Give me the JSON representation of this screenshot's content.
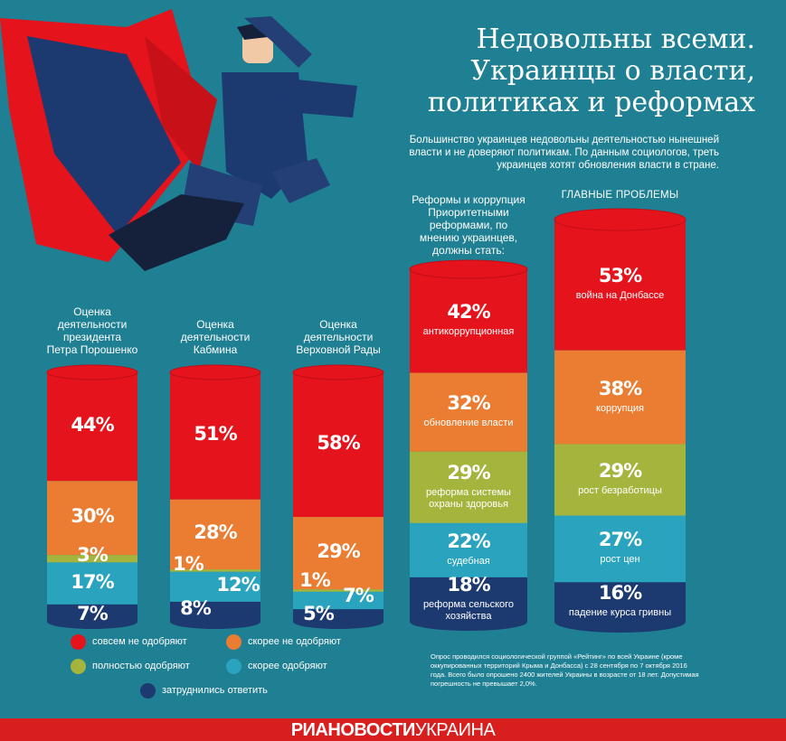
{
  "header": {
    "title_lines": [
      "Недовольны всеми.",
      "Украинцы о власти,",
      "политиках и реформах"
    ],
    "lead_lines": [
      "Большинство украинцев недовольны деятельностью нынешней",
      "власти и не доверяют политикам. По данным социологов, треть",
      "украинцев хотят обновления власти в стране."
    ]
  },
  "colors": {
    "background": "#1f7f93",
    "red": "#e4131c",
    "orange": "#ea7d32",
    "green": "#a4b43d",
    "teal": "#2aa4be",
    "navy": "#1c3970",
    "footer": "#d91e1e"
  },
  "chart_data": [
    {
      "type": "stacked-bar",
      "title_lines": [
        "Оценка",
        "деятельности",
        "президента",
        "Петра Порошенко"
      ],
      "segments": [
        {
          "key": "red",
          "value": 44,
          "label": "44%"
        },
        {
          "key": "orange",
          "value": 30,
          "label": "30%"
        },
        {
          "key": "green",
          "value": 3,
          "label": "3%"
        },
        {
          "key": "teal",
          "value": 17,
          "label": "17%"
        },
        {
          "key": "navy",
          "value": 7,
          "label": "7%"
        }
      ]
    },
    {
      "type": "stacked-bar",
      "title_lines": [
        "Оценка",
        "деятельности",
        "Кабмина"
      ],
      "segments": [
        {
          "key": "red",
          "value": 51,
          "label": "51%"
        },
        {
          "key": "orange",
          "value": 28,
          "label": "28%"
        },
        {
          "key": "green",
          "value": 1,
          "label": "1%"
        },
        {
          "key": "teal",
          "value": 12,
          "label": "12%"
        },
        {
          "key": "navy",
          "value": 8,
          "label": "8%"
        }
      ]
    },
    {
      "type": "stacked-bar",
      "title_lines": [
        "Оценка",
        "деятельности",
        "Верховной Рады"
      ],
      "segments": [
        {
          "key": "red",
          "value": 58,
          "label": "58%"
        },
        {
          "key": "orange",
          "value": 29,
          "label": "29%"
        },
        {
          "key": "green",
          "value": 1,
          "label": "1%"
        },
        {
          "key": "teal",
          "value": 7,
          "label": "7%"
        },
        {
          "key": "navy",
          "value": 5,
          "label": "5%"
        }
      ]
    },
    {
      "type": "stacked-bar",
      "title_lines": [
        "Реформы и коррупция",
        "Приоритетными",
        "реформами, по",
        "мнению украинцев,",
        "должны стать:"
      ],
      "segments": [
        {
          "key": "red",
          "value": 42,
          "label": "42%",
          "category": [
            "антикоррупционная"
          ]
        },
        {
          "key": "orange",
          "value": 32,
          "label": "32%",
          "category": [
            "обновление власти"
          ]
        },
        {
          "key": "green",
          "value": 29,
          "label": "29%",
          "category": [
            "реформа системы",
            "охраны здоровья"
          ]
        },
        {
          "key": "teal",
          "value": 22,
          "label": "22%",
          "category": [
            "судебная"
          ]
        },
        {
          "key": "navy",
          "value": 18,
          "label": "18%",
          "category": [
            "реформа сельского",
            "хозяйства"
          ]
        }
      ]
    },
    {
      "type": "stacked-bar",
      "title_lines": [
        "ГЛАВНЫЕ ПРОБЛЕМЫ"
      ],
      "segments": [
        {
          "key": "red",
          "value": 53,
          "label": "53%",
          "category": [
            "война на Донбассе"
          ]
        },
        {
          "key": "orange",
          "value": 38,
          "label": "38%",
          "category": [
            "коррупция"
          ]
        },
        {
          "key": "green",
          "value": 29,
          "label": "29%",
          "category": [
            "рост безработицы"
          ]
        },
        {
          "key": "teal",
          "value": 27,
          "label": "27%",
          "category": [
            "рост цен"
          ]
        },
        {
          "key": "navy",
          "value": 16,
          "label": "16%",
          "category": [
            "падение курса гривны"
          ]
        }
      ]
    }
  ],
  "legend": [
    {
      "key": "red",
      "label": "совсем не одобряют"
    },
    {
      "key": "orange",
      "label": "скорее не одобряют"
    },
    {
      "key": "green",
      "label": "полностью одобряют"
    },
    {
      "key": "teal",
      "label": "скорее одобряют"
    },
    {
      "key": "navy",
      "label": "затруднились ответить"
    }
  ],
  "note_lines": [
    "Опрос проводился социологической группой «Рейтинг» по всей Украине (кроме",
    "оккупированных территорий Крыма и Донбасса) с 28 сентября по 7 октября 2016",
    "года. Всего было опрошено 2400 жителей Украины в возрасте от 18 лет. Допустимая",
    "погрешность не превышает 2,0%."
  ],
  "footer": {
    "brand_bold": "РИАНОВОСТИ",
    "brand_light": "УКРАИНА"
  }
}
